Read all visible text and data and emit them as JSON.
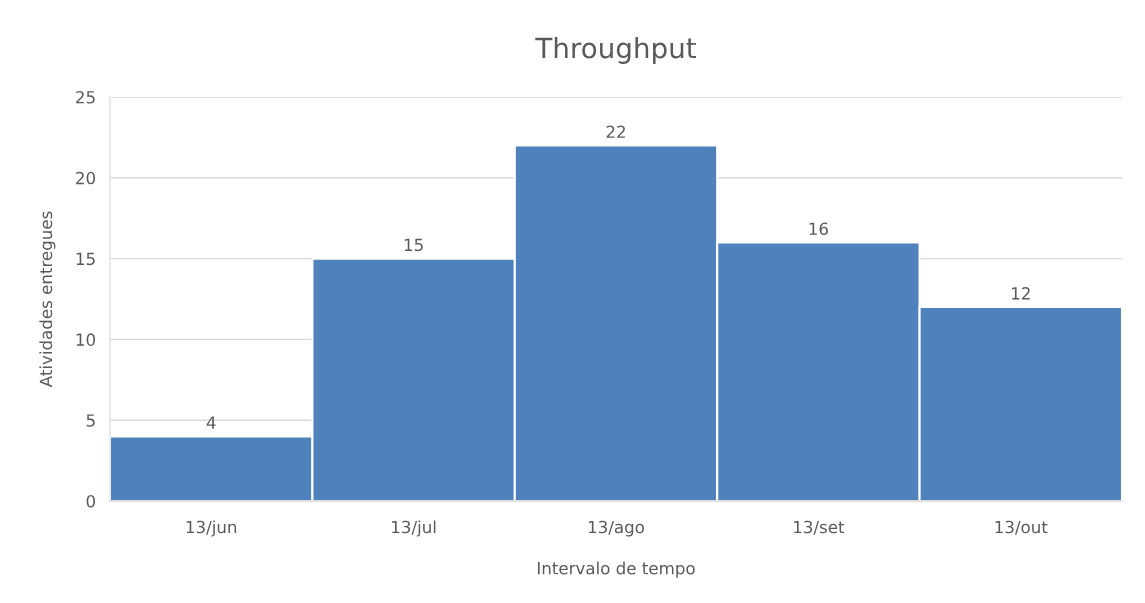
{
  "chart_data": {
    "type": "bar",
    "title": "Throughput",
    "xlabel": "Intervalo de tempo",
    "ylabel": "Atividades entregues",
    "categories": [
      "13/jun",
      "13/jul",
      "13/ago",
      "13/set",
      "13/out"
    ],
    "values": [
      4,
      15,
      22,
      16,
      12
    ],
    "color": "#4f81bd",
    "ylim": [
      0,
      25
    ],
    "yticks": [
      0,
      5,
      10,
      15,
      20,
      25
    ],
    "grid": "y",
    "data_labels": true
  }
}
